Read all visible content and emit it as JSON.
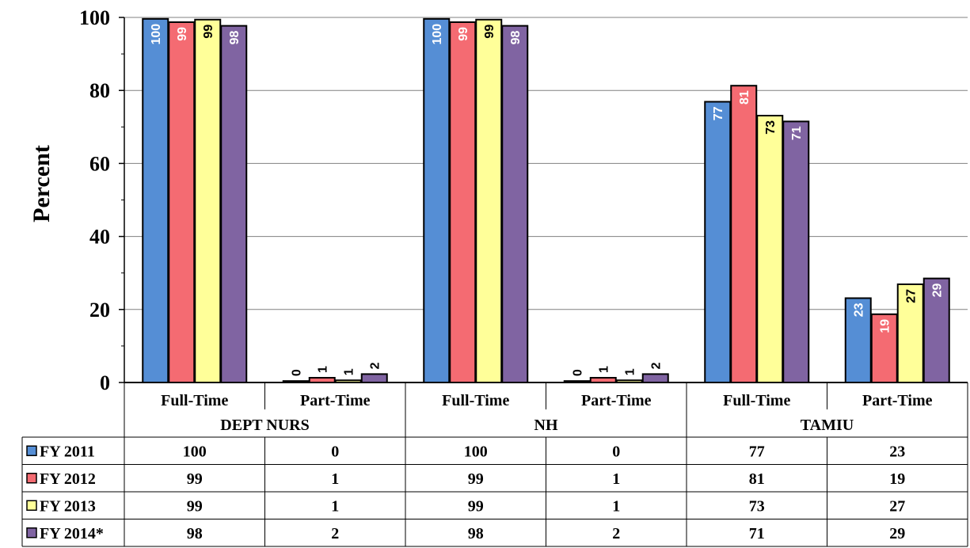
{
  "chart_data": {
    "type": "bar",
    "ylabel": "Percent",
    "ylim": [
      0,
      100
    ],
    "yticks": [
      0,
      20,
      40,
      60,
      80,
      100
    ],
    "grid": true,
    "groups": [
      {
        "label": "DEPT NURS",
        "categories": [
          "Full-Time",
          "Part-Time"
        ]
      },
      {
        "label": "NH",
        "categories": [
          "Full-Time",
          "Part-Time"
        ]
      },
      {
        "label": "TAMIU",
        "categories": [
          "Full-Time",
          "Part-Time"
        ]
      }
    ],
    "series": [
      {
        "name": "FY 2011",
        "color": "#558ed5",
        "label_color": "#ffffff",
        "display": [
          "100",
          "0",
          "100",
          "0",
          "77",
          "23"
        ],
        "values": [
          99.6,
          0.4,
          99.6,
          0.4,
          76.9,
          23.1
        ]
      },
      {
        "name": "FY 2012",
        "color": "#f46b72",
        "label_color": "#ffffff",
        "display": [
          "99",
          "1",
          "99",
          "1",
          "81",
          "19"
        ],
        "values": [
          98.7,
          1.3,
          98.7,
          1.3,
          81.3,
          18.7
        ]
      },
      {
        "name": "FY 2013",
        "color": "#ffff99",
        "label_color": "#000000",
        "display": [
          "99",
          "1",
          "99",
          "1",
          "73",
          "27"
        ],
        "values": [
          99.4,
          0.6,
          99.4,
          0.6,
          73.1,
          26.9
        ]
      },
      {
        "name": "FY 2014*",
        "color": "#8064a2",
        "label_color": "#ffffff",
        "display": [
          "98",
          "2",
          "98",
          "2",
          "71",
          "29"
        ],
        "values": [
          97.7,
          2.3,
          97.7,
          2.3,
          71.5,
          28.5
        ]
      }
    ],
    "legend_placement": "data-table-left"
  }
}
